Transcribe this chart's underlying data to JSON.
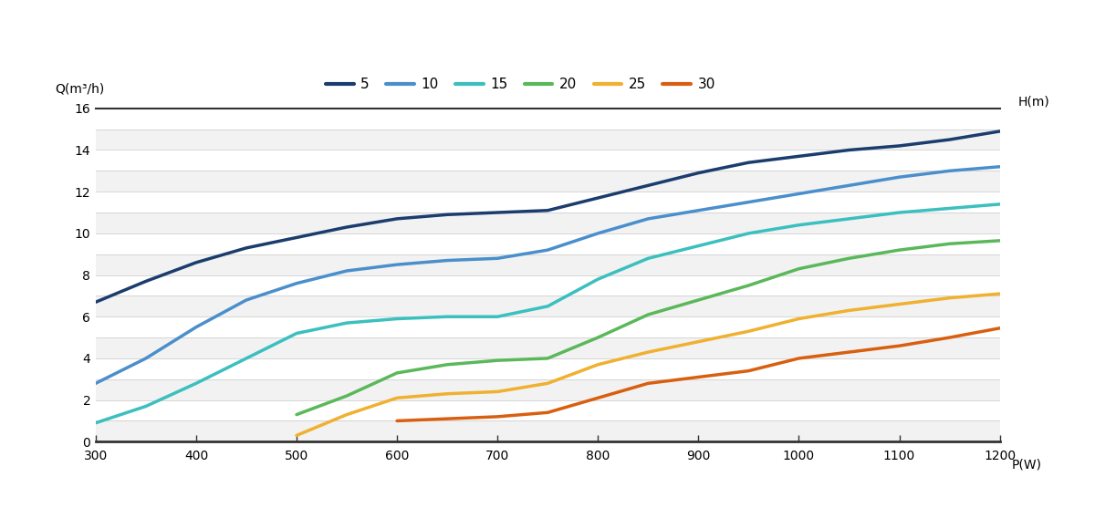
{
  "xlabel": "P(W)",
  "ylabel": "Q(m³/h)",
  "ylabel_right": "H(m)",
  "xlim": [
    300,
    1200
  ],
  "ylim": [
    0,
    16
  ],
  "xticks": [
    300,
    400,
    500,
    600,
    700,
    800,
    900,
    1000,
    1100,
    1200
  ],
  "yticks": [
    0,
    2,
    4,
    6,
    8,
    10,
    12,
    14,
    16
  ],
  "minor_yticks": [
    1,
    3,
    5,
    7,
    9,
    11,
    13,
    15
  ],
  "background_color": "#ffffff",
  "plot_bg_color": "#ffffff",
  "band_color_even": "#f2f2f2",
  "band_color_odd": "#ffffff",
  "grid_color": "#d0d0d0",
  "border_color": "#333333",
  "series": [
    {
      "label": "5",
      "color": "#1b3d6e",
      "linewidth": 2.5,
      "x": [
        300,
        350,
        400,
        450,
        500,
        550,
        600,
        650,
        700,
        750,
        800,
        850,
        900,
        950,
        1000,
        1050,
        1100,
        1150,
        1200
      ],
      "y": [
        6.7,
        7.7,
        8.6,
        9.3,
        9.8,
        10.3,
        10.7,
        10.9,
        11.0,
        11.1,
        11.7,
        12.3,
        12.9,
        13.4,
        13.7,
        14.0,
        14.2,
        14.5,
        14.9
      ]
    },
    {
      "label": "10",
      "color": "#4a8fcc",
      "linewidth": 2.5,
      "x": [
        300,
        350,
        400,
        450,
        500,
        550,
        600,
        650,
        700,
        750,
        800,
        850,
        900,
        950,
        1000,
        1050,
        1100,
        1150,
        1200
      ],
      "y": [
        2.8,
        4.0,
        5.5,
        6.8,
        7.6,
        8.2,
        8.5,
        8.7,
        8.8,
        9.2,
        10.0,
        10.7,
        11.1,
        11.5,
        11.9,
        12.3,
        12.7,
        13.0,
        13.2
      ]
    },
    {
      "label": "15",
      "color": "#3bbfbf",
      "linewidth": 2.5,
      "x": [
        300,
        350,
        400,
        450,
        500,
        550,
        600,
        650,
        700,
        750,
        800,
        850,
        900,
        950,
        1000,
        1050,
        1100,
        1150,
        1200
      ],
      "y": [
        0.9,
        1.7,
        2.8,
        4.0,
        5.2,
        5.7,
        5.9,
        6.0,
        6.0,
        6.5,
        7.8,
        8.8,
        9.4,
        10.0,
        10.4,
        10.7,
        11.0,
        11.2,
        11.4
      ]
    },
    {
      "label": "20",
      "color": "#5ab85a",
      "linewidth": 2.5,
      "x": [
        300,
        350,
        400,
        450,
        500,
        550,
        600,
        650,
        700,
        750,
        800,
        850,
        900,
        950,
        1000,
        1050,
        1100,
        1150,
        1200
      ],
      "y": [
        null,
        null,
        null,
        null,
        1.3,
        2.2,
        3.3,
        3.7,
        3.9,
        4.0,
        5.0,
        6.1,
        6.8,
        7.5,
        8.3,
        8.8,
        9.2,
        9.5,
        9.65
      ]
    },
    {
      "label": "25",
      "color": "#f0b030",
      "linewidth": 2.5,
      "x": [
        300,
        350,
        400,
        450,
        500,
        550,
        600,
        650,
        700,
        750,
        800,
        850,
        900,
        950,
        1000,
        1050,
        1100,
        1150,
        1200
      ],
      "y": [
        null,
        null,
        null,
        null,
        0.3,
        1.3,
        2.1,
        2.3,
        2.4,
        2.8,
        3.7,
        4.3,
        4.8,
        5.3,
        5.9,
        6.3,
        6.6,
        6.9,
        7.1
      ]
    },
    {
      "label": "30",
      "color": "#d95f10",
      "linewidth": 2.5,
      "x": [
        300,
        350,
        400,
        450,
        500,
        550,
        600,
        650,
        700,
        750,
        800,
        850,
        900,
        950,
        1000,
        1050,
        1100,
        1150,
        1200
      ],
      "y": [
        null,
        null,
        null,
        null,
        null,
        null,
        1.0,
        1.1,
        1.2,
        1.4,
        2.1,
        2.8,
        3.1,
        3.4,
        4.0,
        4.3,
        4.6,
        5.0,
        5.45
      ]
    }
  ]
}
